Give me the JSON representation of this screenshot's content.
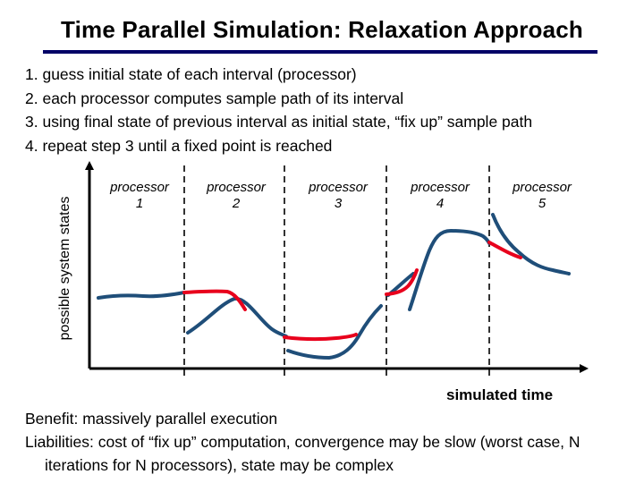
{
  "title": "Time Parallel Simulation: Relaxation Approach",
  "steps": [
    "1. guess initial state of each interval (processor)",
    "2. each processor computes sample path of its interval",
    "3. using final state of previous interval as initial state, “fix up” sample path",
    "4. repeat step 3 until a fixed point is reached"
  ],
  "diagram": {
    "y_axis_label": "possible system states",
    "x_axis_label": "simulated time",
    "processors": [
      {
        "name": "processor",
        "number": "1"
      },
      {
        "name": "processor",
        "number": "2"
      },
      {
        "name": "processor",
        "number": "3"
      },
      {
        "name": "processor",
        "number": "4"
      },
      {
        "name": "processor",
        "number": "5"
      }
    ],
    "colors": {
      "original_path": "#1f4e79",
      "fixup_path": "#e8001c",
      "axis": "#000000"
    }
  },
  "footer": {
    "benefit": "Benefit: massively parallel execution",
    "liabilities": "Liabilities: cost of “fix up” computation, convergence may be slow (worst case, N iterations for N processors), state may be complex"
  }
}
